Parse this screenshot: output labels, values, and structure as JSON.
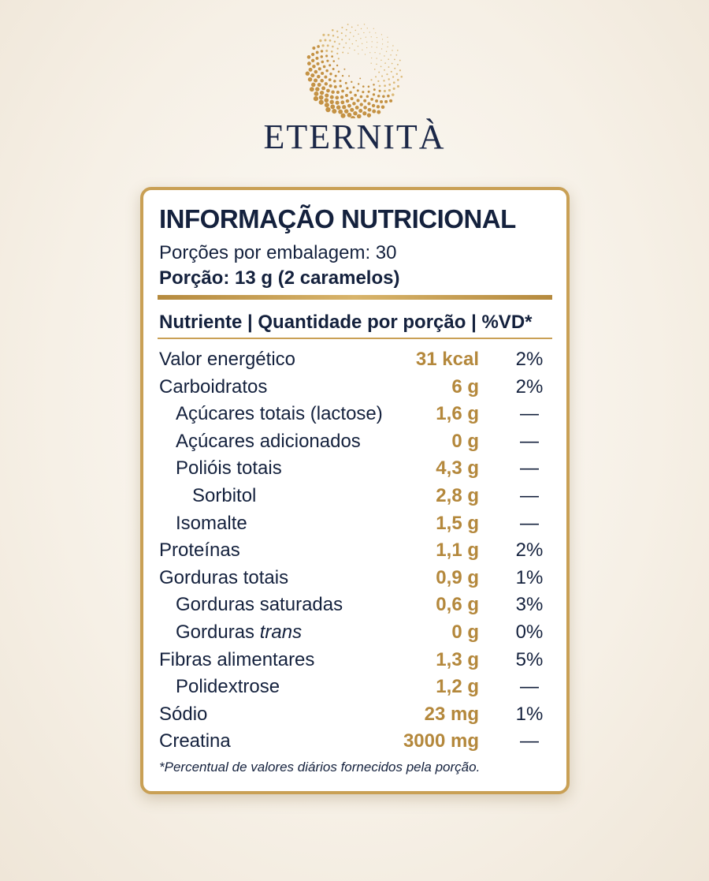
{
  "brand": "ETERNITÀ",
  "label": {
    "title": "INFORMAÇÃO NUTRICIONAL",
    "servings_per_package": "Porções por embalagem: 30",
    "serving_size": "Porção: 13 g (2 caramelos)",
    "header": "Nutriente | Quantidade por porção | %VD*",
    "rows": [
      {
        "name": "Valor energético",
        "level": 0,
        "amount": "31 kcal",
        "dv": "2%"
      },
      {
        "name": "Carboidratos",
        "level": 0,
        "amount": "6 g",
        "dv": "2%"
      },
      {
        "name": "Açúcares totais (lactose)",
        "level": 1,
        "amount": "1,6 g",
        "dv": "—"
      },
      {
        "name": "Açúcares adicionados",
        "level": 1,
        "amount": "0 g",
        "dv": "—"
      },
      {
        "name": "Polióis totais",
        "level": 1,
        "amount": "4,3 g",
        "dv": "—"
      },
      {
        "name": "Sorbitol",
        "level": 2,
        "amount": "2,8 g",
        "dv": "—"
      },
      {
        "name": "Isomalte",
        "level": 1,
        "amount": "1,5 g",
        "dv": "—"
      },
      {
        "name": "Proteínas",
        "level": 0,
        "amount": "1,1 g",
        "dv": "2%"
      },
      {
        "name": "Gorduras totais",
        "level": 0,
        "amount": "0,9 g",
        "dv": "1%"
      },
      {
        "name": "Gorduras saturadas",
        "level": 1,
        "amount": "0,6 g",
        "dv": "3%"
      },
      {
        "name": "Gorduras",
        "name_italic": "trans",
        "level": 1,
        "amount": "0 g",
        "dv": "0%"
      },
      {
        "name": "Fibras alimentares",
        "level": 0,
        "amount": "1,3 g",
        "dv": "5%"
      },
      {
        "name": "Polidextrose",
        "level": 1,
        "amount": "1,2 g",
        "dv": "—"
      },
      {
        "name": "Sódio",
        "level": 0,
        "amount": "23 mg",
        "dv": "1%"
      },
      {
        "name": "Creatina",
        "level": 0,
        "amount": "3000 mg",
        "dv": "—"
      }
    ],
    "footnote": "*Percentual de valores diários fornecidos pela porção."
  }
}
